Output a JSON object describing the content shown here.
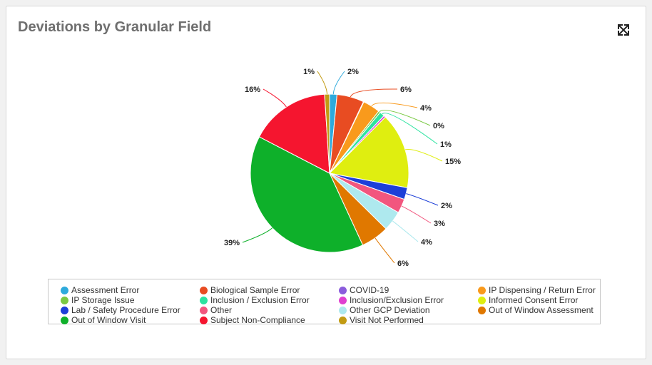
{
  "card": {
    "title": "Deviations by Granular Field",
    "expand_icon": "expand-arrows-icon"
  },
  "chart_data": {
    "type": "pie",
    "title": "Deviations by Granular Field",
    "legend_position": "bottom",
    "slices": [
      {
        "label": "Assessment Error",
        "value": 1.5,
        "display": "2%",
        "color": "#2eaadc"
      },
      {
        "label": "Biological Sample Error",
        "value": 5.5,
        "display": "6%",
        "color": "#e84c22"
      },
      {
        "label": "COVID-19",
        "value": 0.1,
        "display": "",
        "color": "#8b5cdc"
      },
      {
        "label": "IP Dispensing / Return Error",
        "value": 3.5,
        "display": "4%",
        "color": "#f99a1c"
      },
      {
        "label": "IP Storage Issue",
        "value": 0.4,
        "display": "0%",
        "color": "#7ac943"
      },
      {
        "label": "Inclusion / Exclusion Error",
        "value": 1.0,
        "display": "1%",
        "color": "#2de3a0"
      },
      {
        "label": "Inclusion/Exclusion Error",
        "value": 0.4,
        "display": "",
        "color": "#e040d0"
      },
      {
        "label": "Informed Consent Error",
        "value": 15.4,
        "display": "15%",
        "color": "#dfee10"
      },
      {
        "label": "Lab / Safety Procedure Error",
        "value": 2.4,
        "display": "2%",
        "color": "#1d3fd8"
      },
      {
        "label": "Other",
        "value": 2.9,
        "display": "3%",
        "color": "#f2567e"
      },
      {
        "label": "Other GCP Deviation",
        "value": 4.1,
        "display": "4%",
        "color": "#aee9ee"
      },
      {
        "label": "Out of Window Assessment",
        "value": 5.7,
        "display": "6%",
        "color": "#e07800"
      },
      {
        "label": "Out of Window Visit",
        "value": 39.3,
        "display": "39%",
        "color": "#0eb02a"
      },
      {
        "label": "Subject Non-Compliance",
        "value": 16.3,
        "display": "16%",
        "color": "#f5152f"
      },
      {
        "label": "Visit Not Performed",
        "value": 1.0,
        "display": "1%",
        "color": "#c29b12"
      }
    ]
  }
}
